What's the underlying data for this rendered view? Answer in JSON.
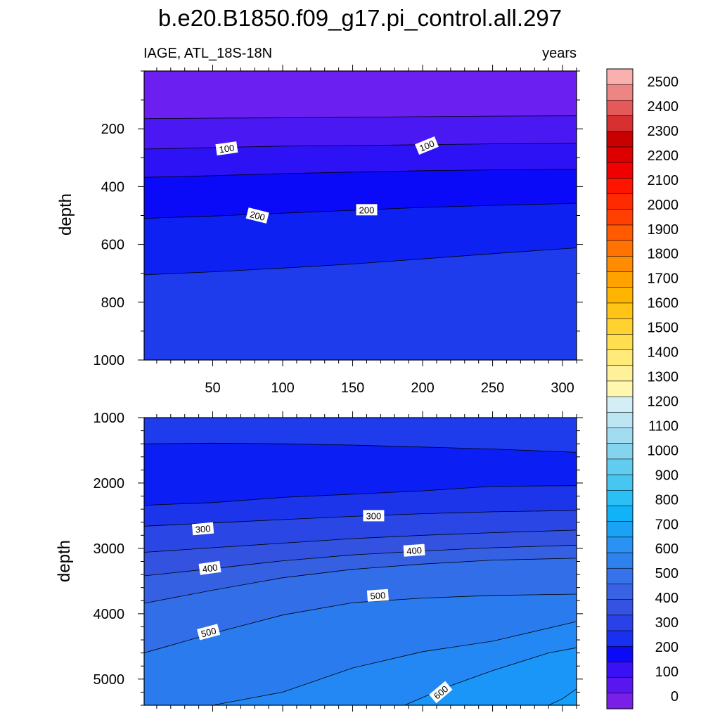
{
  "chart_data": {
    "type": "contour",
    "title": "b.e20.B1850.f09_g17.pi_control.all.297",
    "left_string": "IAGE, ATL_18S-18N",
    "right_string": "years",
    "xlabel": "",
    "colorbar": {
      "levels": [
        0,
        100,
        200,
        300,
        400,
        500,
        600,
        700,
        800,
        900,
        1000,
        1100,
        1200,
        1300,
        1400,
        1500,
        1600,
        1700,
        1800,
        1900,
        2000,
        2100,
        2200,
        2300,
        2400,
        2500
      ],
      "colors": [
        "#7a1fe8",
        "#5a16ee",
        "#3a10f4",
        "#0a0af6",
        "#1a30f0",
        "#2a40e8",
        "#3652e0",
        "#3a62e4",
        "#3672ea",
        "#2e82ee",
        "#2a92f2",
        "#1aa2f6",
        "#10b2f8",
        "#2ac0f6",
        "#48c6f2",
        "#60cdf0",
        "#84d4ee",
        "#a2dcf0",
        "#bce6f4",
        "#d4eef8",
        "#fff6b0",
        "#fff19a",
        "#ffea7a",
        "#ffdf50",
        "#ffd230",
        "#ffc415",
        "#ffb400",
        "#ffa200",
        "#ff8c00",
        "#ff7400",
        "#ff5a00",
        "#ff4000",
        "#ff2a00",
        "#ff1400",
        "#f00000",
        "#dc0000",
        "#c80000",
        "#d83030",
        "#e45a5a",
        "#ee8585",
        "#fbb0b0"
      ]
    },
    "panels": [
      {
        "name": "upper",
        "ylabel": "depth",
        "xlim": [
          1,
          310
        ],
        "ylim": [
          0,
          1000
        ],
        "xticks": [
          50,
          100,
          150,
          200,
          250,
          300
        ],
        "yticks": [
          200,
          400,
          600,
          800,
          1000
        ],
        "contours": [
          {
            "level": 50,
            "x": [
              1,
              50,
              100,
              150,
              200,
              250,
              310
            ],
            "depth": [
              165,
              163,
              162,
              160,
              158,
              156,
              155
            ]
          },
          {
            "level": 100,
            "x": [
              1,
              50,
              100,
              150,
              200,
              250,
              310
            ],
            "depth": [
              270,
              265,
              260,
              258,
              255,
              252,
              250
            ]
          },
          {
            "level": 150,
            "x": [
              1,
              50,
              100,
              150,
              200,
              250,
              310
            ],
            "depth": [
              368,
              362,
              355,
              350,
              345,
              342,
              340
            ]
          },
          {
            "level": 200,
            "x": [
              1,
              50,
              100,
              150,
              200,
              250,
              310
            ],
            "depth": [
              510,
              502,
              492,
              482,
              472,
              465,
              458
            ]
          },
          {
            "level": 250,
            "x": [
              1,
              50,
              100,
              150,
              200,
              250,
              310
            ],
            "depth": [
              705,
              695,
              682,
              668,
              650,
              632,
              612
            ]
          }
        ],
        "bands": [
          {
            "from_level": 0,
            "color": "#6b1ff0"
          },
          {
            "from_level": 50,
            "color": "#4a18f2"
          },
          {
            "from_level": 100,
            "color": "#2d12f6"
          },
          {
            "from_level": 150,
            "color": "#0a0af8"
          },
          {
            "from_level": 200,
            "color": "#0d22f2"
          },
          {
            "from_level": 250,
            "color": "#1e3cec"
          }
        ],
        "labels": [
          {
            "text": "100",
            "x": 60,
            "depth": 268,
            "angle": -8
          },
          {
            "text": "100",
            "x": 203,
            "depth": 258,
            "angle": -22
          },
          {
            "text": "200",
            "x": 82,
            "depth": 500,
            "angle": 14
          },
          {
            "text": "200",
            "x": 160,
            "depth": 480,
            "angle": 0
          }
        ]
      },
      {
        "name": "lower",
        "ylabel": "depth",
        "xlim": [
          1,
          310
        ],
        "ylim": [
          1000,
          5400
        ],
        "xticks": [
          50,
          100,
          150,
          200,
          250,
          300
        ],
        "yticks": [
          1000,
          2000,
          3000,
          4000,
          5000
        ],
        "contours": [
          {
            "level": 250,
            "x": [
              1,
              50,
              100,
              150,
              200,
              250,
              310
            ],
            "depth": [
              1400,
              1390,
              1400,
              1420,
              1450,
              1480,
              1530
            ]
          },
          {
            "level": 200,
            "x": [
              1,
              50,
              100,
              150,
              200,
              250,
              310
            ],
            "depth": [
              2340,
              2300,
              2220,
              2170,
              2120,
              2050,
              2040
            ]
          },
          {
            "level": 300,
            "x": [
              1,
              50,
              100,
              150,
              200,
              250,
              310
            ],
            "depth": [
              2660,
              2610,
              2560,
              2510,
              2470,
              2440,
              2420
            ]
          },
          {
            "level": 350,
            "x": [
              1,
              50,
              100,
              150,
              200,
              250,
              310
            ],
            "depth": [
              3060,
              2990,
              2920,
              2850,
              2800,
              2760,
              2720
            ]
          },
          {
            "level": 400,
            "x": [
              1,
              50,
              100,
              150,
              200,
              250,
              310
            ],
            "depth": [
              3420,
              3310,
              3190,
              3100,
              3040,
              2990,
              2950
            ]
          },
          {
            "level": 450,
            "x": [
              1,
              50,
              100,
              150,
              200,
              250,
              310
            ],
            "depth": [
              3840,
              3640,
              3450,
              3320,
              3240,
              3180,
              3150
            ]
          },
          {
            "level": 500,
            "x": [
              1,
              50,
              100,
              150,
              200,
              250,
              310
            ],
            "depth": [
              4600,
              4300,
              4020,
              3830,
              3760,
              3720,
              3700
            ]
          },
          {
            "level": 550,
            "x": [
              50,
              100,
              150,
              200,
              250,
              310
            ],
            "depth": [
              5400,
              5200,
              4830,
              4580,
              4420,
              4120
            ]
          },
          {
            "level": 600,
            "x": [
              187,
              220,
              250,
              290,
              310
            ],
            "depth": [
              5400,
              5100,
              4870,
              4600,
              4520
            ]
          },
          {
            "level": 650,
            "x": [
              290,
              300,
              310
            ],
            "depth": [
              5400,
              5300,
              5150
            ]
          }
        ],
        "bands": [
          {
            "from_level": 250,
            "color": "#1e3cec"
          },
          {
            "from_level": 200,
            "color": "#0b1ff4"
          },
          {
            "from_level": 250,
            "color": "#1c34ea"
          },
          {
            "from_level": 300,
            "color": "#2a46e4"
          },
          {
            "from_level": 350,
            "color": "#3452e0"
          },
          {
            "from_level": 400,
            "color": "#3660e2"
          },
          {
            "from_level": 450,
            "color": "#326ee8"
          },
          {
            "from_level": 500,
            "color": "#2a7cee"
          },
          {
            "from_level": 550,
            "color": "#2388f4"
          },
          {
            "from_level": 600,
            "color": "#1a96f8"
          },
          {
            "from_level": 650,
            "color": "#14a0fa"
          }
        ],
        "labels": [
          {
            "text": "300",
            "x": 43,
            "depth": 2700,
            "angle": -5
          },
          {
            "text": "300",
            "x": 165,
            "depth": 2500,
            "angle": 0
          },
          {
            "text": "400",
            "x": 48,
            "depth": 3300,
            "angle": -8
          },
          {
            "text": "400",
            "x": 194,
            "depth": 3030,
            "angle": -4
          },
          {
            "text": "500",
            "x": 47,
            "depth": 4280,
            "angle": -15
          },
          {
            "text": "500",
            "x": 168,
            "depth": 3720,
            "angle": -4
          },
          {
            "text": "600",
            "x": 213,
            "depth": 5200,
            "angle": -40
          }
        ]
      }
    ]
  }
}
